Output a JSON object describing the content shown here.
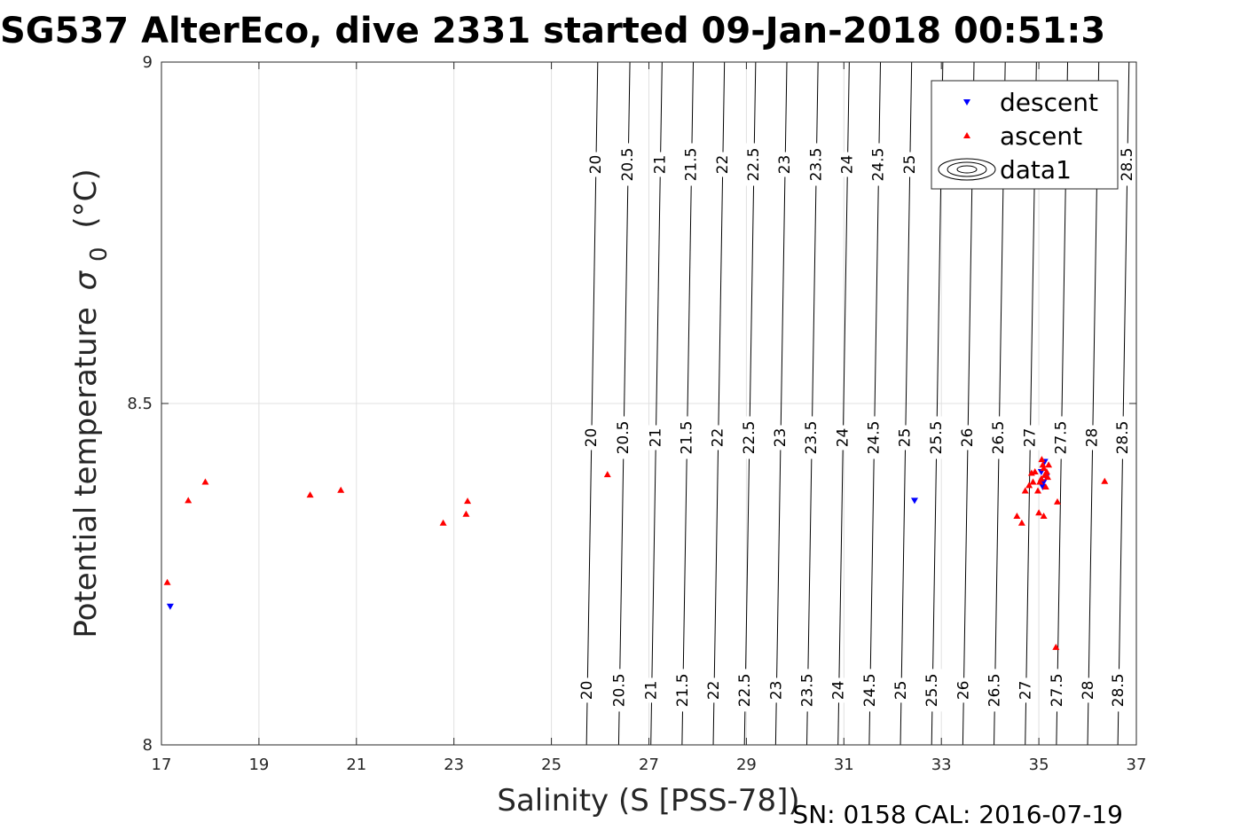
{
  "chart_data": {
    "type": "scatter",
    "title": "SG537 AlterEco, dive 2331 started 09-Jan-2018 00:51:3",
    "xlabel": "Salinity (S [PSS-78])",
    "ylabel_main": "Potential temperature",
    "ylabel_sym": "σ",
    "ylabel_sub": "0",
    "ylabel_unit": "(°C)",
    "xlim": [
      17,
      37
    ],
    "ylim": [
      8,
      9
    ],
    "xticks": [
      "17",
      "19",
      "21",
      "23",
      "25",
      "27",
      "29",
      "31",
      "33",
      "35",
      "37"
    ],
    "yticks": [
      "8",
      "8.5",
      "9"
    ],
    "grid": true,
    "legend_position": "top-right",
    "footer": "SN: 0158  CAL: 2016-07-19",
    "colors": {
      "descent": "#0000ff",
      "ascent": "#ff0000",
      "contour": "#000000",
      "grid": "#e0e0e0"
    },
    "series": [
      {
        "name": "descent",
        "marker": "triangle-down",
        "color": "#0000ff",
        "points": [
          [
            17.18,
            8.203
          ],
          [
            32.45,
            8.358
          ],
          [
            35.08,
            8.378
          ],
          [
            35.12,
            8.415
          ],
          [
            35.15,
            8.392
          ],
          [
            35.05,
            8.4
          ],
          [
            35.1,
            8.385
          ]
        ]
      },
      {
        "name": "ascent",
        "marker": "triangle-up",
        "color": "#ff0000",
        "points": [
          [
            17.12,
            8.238
          ],
          [
            17.55,
            8.358
          ],
          [
            17.9,
            8.385
          ],
          [
            20.05,
            8.366
          ],
          [
            20.68,
            8.373
          ],
          [
            22.78,
            8.325
          ],
          [
            23.25,
            8.338
          ],
          [
            23.28,
            8.357
          ],
          [
            26.15,
            8.396
          ],
          [
            34.55,
            8.335
          ],
          [
            34.65,
            8.325
          ],
          [
            34.72,
            8.372
          ],
          [
            34.8,
            8.38
          ],
          [
            34.85,
            8.398
          ],
          [
            34.88,
            8.385
          ],
          [
            34.92,
            8.4
          ],
          [
            34.98,
            8.372
          ],
          [
            35.02,
            8.385
          ],
          [
            35.05,
            8.39
          ],
          [
            35.08,
            8.41
          ],
          [
            35.1,
            8.405
          ],
          [
            35.12,
            8.395
          ],
          [
            35.14,
            8.378
          ],
          [
            35.16,
            8.4
          ],
          [
            35.18,
            8.392
          ],
          [
            35.0,
            8.34
          ],
          [
            35.1,
            8.335
          ],
          [
            35.35,
            8.143
          ],
          [
            35.38,
            8.356
          ],
          [
            36.35,
            8.386
          ],
          [
            35.06,
            8.418
          ],
          [
            35.2,
            8.41
          ]
        ]
      },
      {
        "name": "data1",
        "marker": "contour",
        "color": "#000000"
      }
    ],
    "contour_levels": [
      "20",
      "20.5",
      "21",
      "21.5",
      "22",
      "22.5",
      "23",
      "23.5",
      "24",
      "24.5",
      "25",
      "25.5",
      "26",
      "26.5",
      "27",
      "27.5",
      "28",
      "28.5"
    ],
    "contour_x": {
      "20": [
        25.72,
        25.83,
        25.95
      ],
      "20.5": [
        26.38,
        26.49,
        26.61
      ],
      "21": [
        27.04,
        27.15,
        27.27
      ],
      "21.5": [
        27.68,
        27.79,
        27.91
      ],
      "22": [
        28.32,
        28.43,
        28.55
      ],
      "22.5": [
        28.96,
        29.07,
        29.19
      ],
      "23": [
        29.6,
        29.71,
        29.83
      ],
      "23.5": [
        30.24,
        30.35,
        30.47
      ],
      "24": [
        30.88,
        30.99,
        31.11
      ],
      "24.5": [
        31.52,
        31.63,
        31.75
      ],
      "25": [
        32.16,
        32.27,
        32.39
      ],
      "25.5": [
        32.8,
        32.91,
        33.03
      ],
      "26": [
        33.44,
        33.55,
        33.67
      ],
      "26.5": [
        34.08,
        34.19,
        34.31
      ],
      "27": [
        34.72,
        34.83,
        34.95
      ],
      "27.5": [
        35.36,
        35.47,
        35.59
      ],
      "28": [
        36.0,
        36.11,
        36.23
      ],
      "28.5": [
        36.62,
        36.73,
        36.85
      ]
    },
    "label_rows_y": [
      8.08,
      8.45,
      8.85
    ]
  }
}
